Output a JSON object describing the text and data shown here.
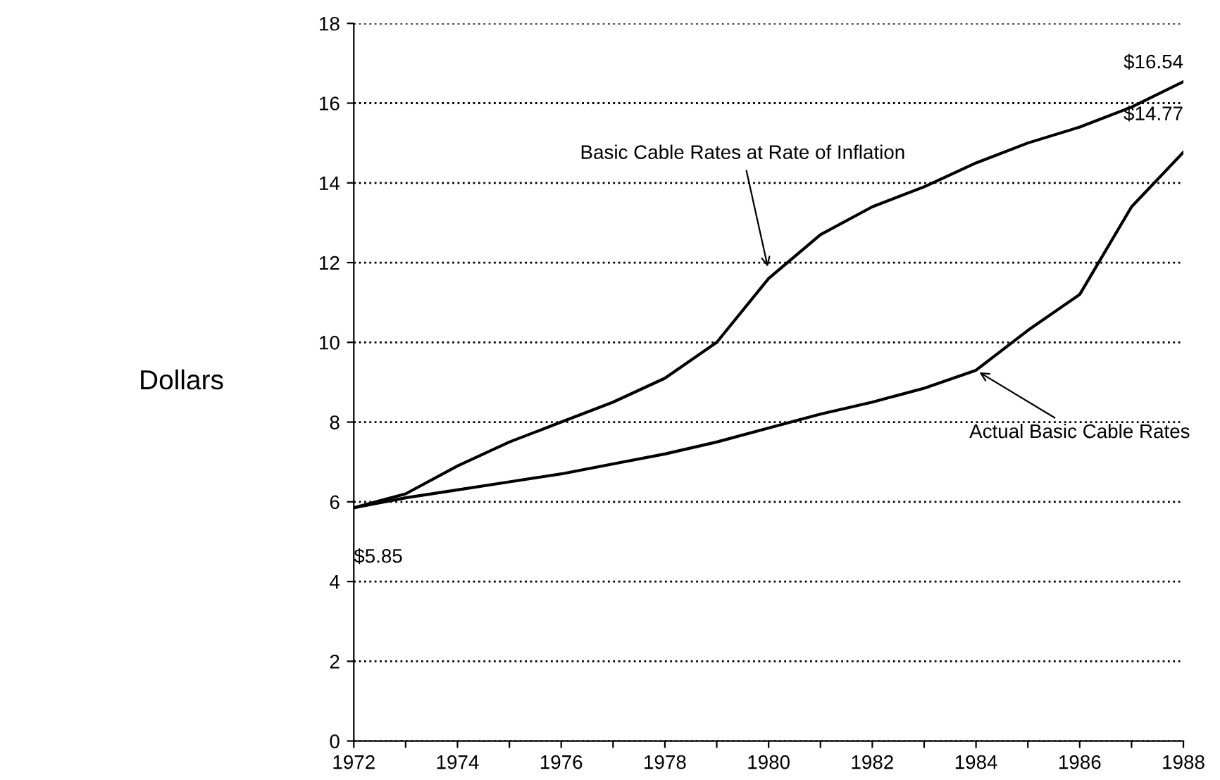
{
  "chart_data": {
    "type": "line",
    "ylabel": "Dollars",
    "x": [
      1972,
      1973,
      1974,
      1975,
      1976,
      1977,
      1978,
      1979,
      1980,
      1981,
      1982,
      1983,
      1984,
      1985,
      1986,
      1987,
      1988
    ],
    "series": [
      {
        "color": "#000000",
        "values": [
          5.85,
          6.2,
          6.9,
          7.5,
          8.0,
          8.5,
          9.1,
          10.0,
          11.6,
          12.7,
          13.4,
          13.9,
          14.5,
          15.0,
          15.4,
          15.9,
          16.54
        ]
      },
      {
        "color": "#000000",
        "values": [
          5.85,
          6.1,
          6.3,
          6.5,
          6.7,
          6.95,
          7.2,
          7.5,
          7.85,
          8.2,
          8.5,
          8.85,
          9.3,
          10.3,
          11.2,
          13.4,
          14.77
        ]
      }
    ],
    "xlim": [
      1972,
      1988
    ],
    "xticks": [
      1972,
      {
        "value": 1973,
        "label": null
      },
      1974,
      {
        "value": 1975,
        "label": null
      },
      1976,
      {
        "value": 1977,
        "label": null
      },
      1978,
      {
        "value": 1979,
        "label": null
      },
      1980,
      {
        "value": 1981,
        "label": null
      },
      1982,
      {
        "value": 1983,
        "label": null
      },
      1984,
      {
        "value": 1985,
        "label": null
      },
      1986,
      {
        "value": 1987,
        "label": null
      },
      1988
    ],
    "ylim": [
      0,
      18
    ],
    "yticks": [
      0,
      2,
      4,
      6,
      8,
      10,
      12,
      14,
      16,
      18
    ],
    "grid": "y",
    "marker": "none",
    "line_style": "solid",
    "annotations": [
      {
        "text": "Basic Cable Rates at Rate of Inflation",
        "x": 1980,
        "y": 11.8
      },
      {
        "text": "Actual Basic Cable Rates",
        "x": 1984,
        "y": 9.3
      },
      {
        "text": "$5.85",
        "x": 1972,
        "y": 5.85
      },
      {
        "text": "$16.54",
        "x": 1988,
        "y": 16.54
      },
      {
        "text": "$14.77",
        "x": 1988,
        "y": 14.77
      }
    ]
  }
}
